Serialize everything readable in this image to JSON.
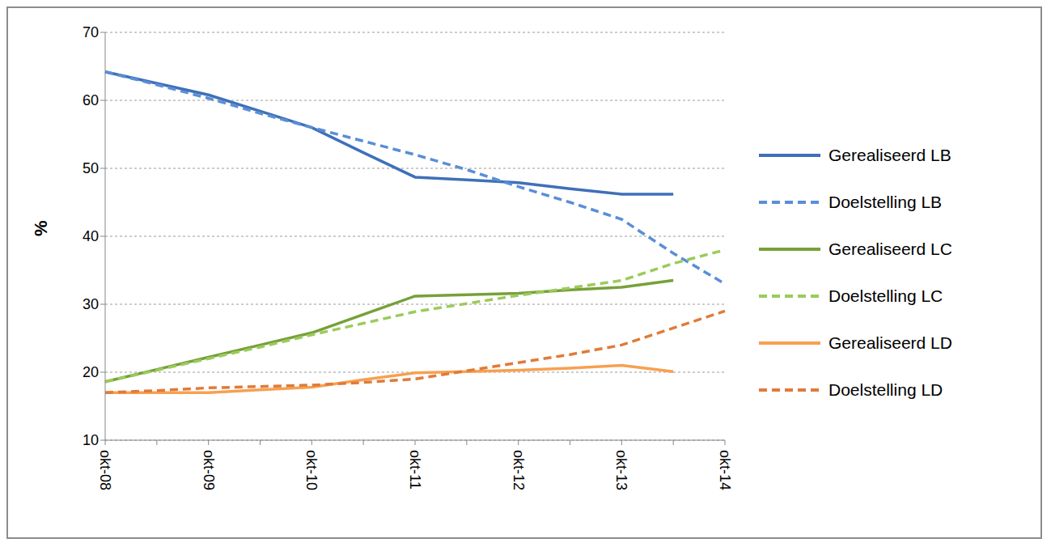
{
  "chart_data": {
    "type": "line",
    "ylabel": "%",
    "categories": [
      "okt-08",
      null,
      "okt-09",
      null,
      "okt-10",
      null,
      "okt-11",
      null,
      "okt-12",
      null,
      "okt-13",
      null,
      "okt-14"
    ],
    "series": [
      {
        "name": "Gerealiseerd LB",
        "color": "#3f70b8",
        "line_style": "solid",
        "values": [
          64.2,
          62.5,
          60.8,
          58.4,
          56.0,
          52.3,
          48.7,
          48.3,
          47.9,
          47.0,
          46.2,
          46.2,
          null
        ]
      },
      {
        "name": "Doelstelling LB",
        "color": "#5a8ed8",
        "line_style": "dashed",
        "values": [
          64.2,
          62.3,
          60.3,
          58.1,
          56.0,
          54.0,
          52.0,
          49.8,
          47.3,
          45.0,
          42.5,
          37.5,
          33.0
        ]
      },
      {
        "name": "Gerealiseerd LC",
        "color": "#77a03a",
        "line_style": "solid",
        "values": [
          18.6,
          20.4,
          22.2,
          24.0,
          25.8,
          28.5,
          31.2,
          31.4,
          31.6,
          32.1,
          32.5,
          33.5,
          null
        ]
      },
      {
        "name": "Doelstelling LC",
        "color": "#9bcb5a",
        "line_style": "dashed",
        "values": [
          18.6,
          20.3,
          22.0,
          23.7,
          25.5,
          27.2,
          28.9,
          30.1,
          31.3,
          32.4,
          33.5,
          36.0,
          38.0
        ]
      },
      {
        "name": "Gerealiseerd LD",
        "color": "#f7a050",
        "line_style": "solid",
        "values": [
          17.0,
          17.0,
          17.0,
          17.4,
          17.8,
          18.9,
          19.9,
          20.1,
          20.3,
          20.6,
          21.0,
          20.1,
          null
        ]
      },
      {
        "name": "Doelstelling LD",
        "color": "#e07b39",
        "line_style": "dashed",
        "values": [
          17.0,
          17.3,
          17.7,
          17.9,
          18.1,
          18.5,
          19.0,
          20.2,
          21.4,
          22.6,
          24.0,
          26.5,
          29.0
        ]
      }
    ],
    "ylim": [
      10,
      70
    ],
    "yticks": [
      10,
      20,
      30,
      40,
      50,
      60,
      70
    ],
    "grid": true,
    "legend": "right"
  }
}
